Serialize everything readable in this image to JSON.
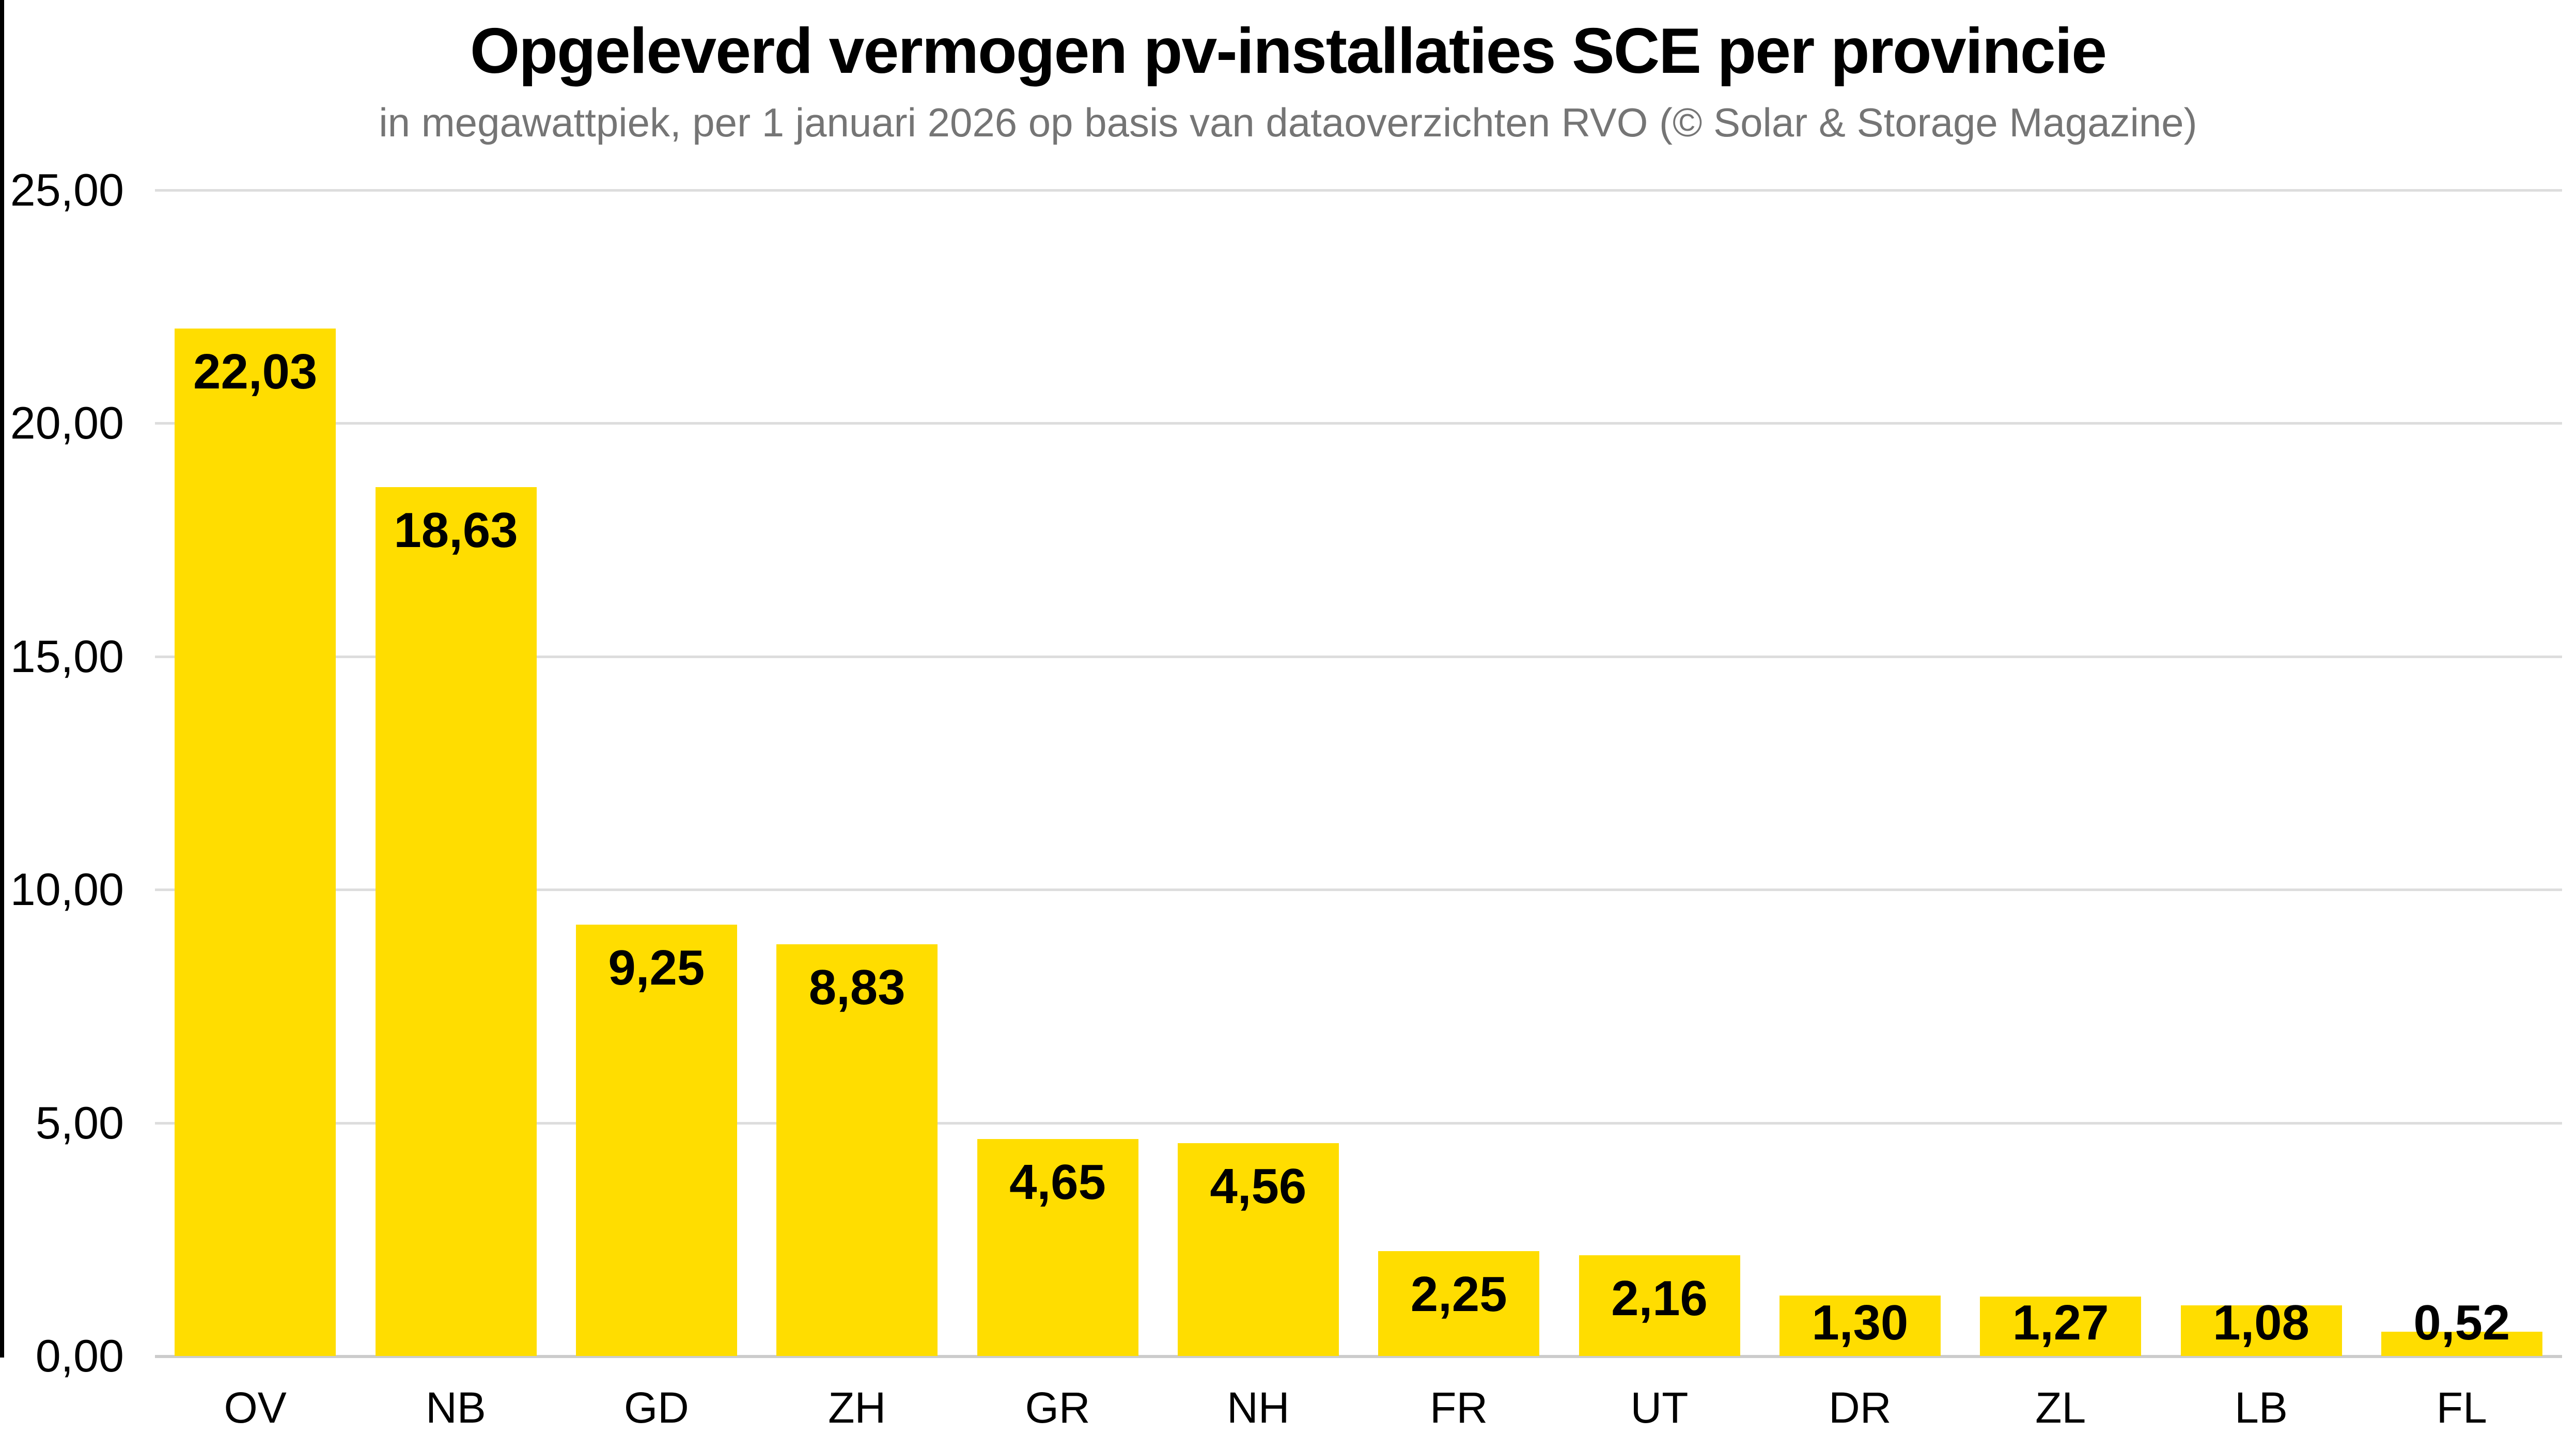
{
  "chart_data": {
    "type": "bar",
    "title": "Opgeleverd vermogen pv-installaties SCE per provincie",
    "subtitle": "in megawattpiek, per 1 januari 2026 op basis van dataoverzichten RVO (© Solar & Storage Magazine)",
    "categories": [
      "OV",
      "NB",
      "GD",
      "ZH",
      "GR",
      "NH",
      "FR",
      "UT",
      "DR",
      "ZL",
      "LB",
      "FL"
    ],
    "values": [
      22.03,
      18.63,
      9.25,
      8.83,
      4.65,
      4.56,
      2.25,
      2.16,
      1.3,
      1.27,
      1.08,
      0.52
    ],
    "value_labels": [
      "22,03",
      "18,63",
      "9,25",
      "8,83",
      "4,65",
      "4,56",
      "2,25",
      "2,16",
      "1,30",
      "1,27",
      "1,08",
      "0,52"
    ],
    "xlabel": "",
    "ylabel": "",
    "ylim": [
      0,
      25
    ],
    "y_ticks": [
      {
        "value": 25,
        "label": "25,00"
      },
      {
        "value": 20,
        "label": "20,00"
      },
      {
        "value": 15,
        "label": "15,00"
      },
      {
        "value": 10,
        "label": "10,00"
      },
      {
        "value": 5,
        "label": "5,00"
      },
      {
        "value": 0,
        "label": "0,00"
      }
    ],
    "grid": "horizontal-gridlines-on",
    "legend": "none",
    "colors": {
      "bar": "#FFDD00",
      "gridline": "#DDDDDD",
      "axis_baseline": "#CCCCCC",
      "y_axis_line": "#000000",
      "title_text": "#000000",
      "subtitle_text": "#757575",
      "value_label_text": "#000000",
      "tick_label_text": "#000000"
    }
  }
}
